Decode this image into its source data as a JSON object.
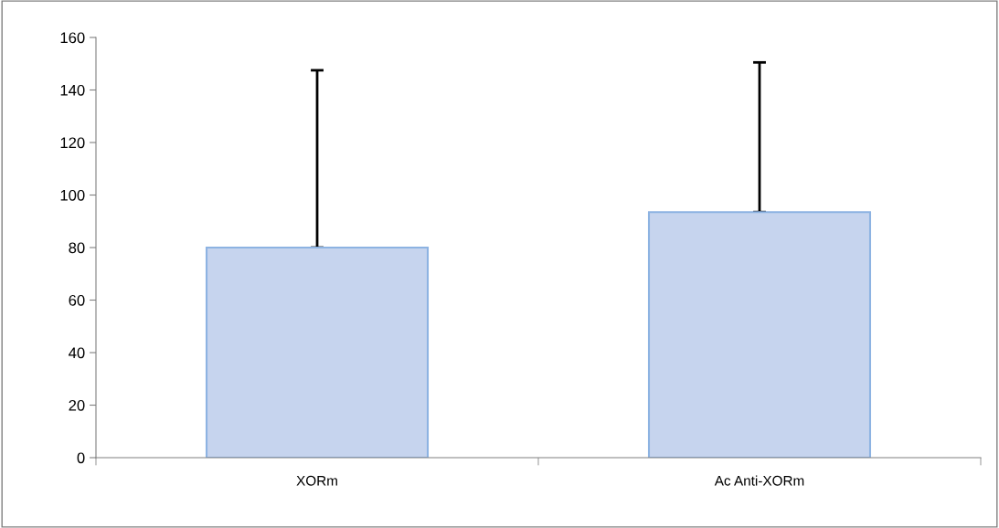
{
  "chart_data": {
    "type": "bar",
    "categories": [
      "XORm",
      "Ac Anti-XORm"
    ],
    "values": [
      80,
      93.5
    ],
    "errors": [
      [
        80,
        147.5
      ],
      [
        93.5,
        150.5
      ]
    ],
    "color": "#c6d4ee",
    "ylim": [
      0,
      160
    ],
    "yticks": [
      0,
      20,
      40,
      60,
      80,
      100,
      120,
      140,
      160
    ],
    "grid": false
  }
}
